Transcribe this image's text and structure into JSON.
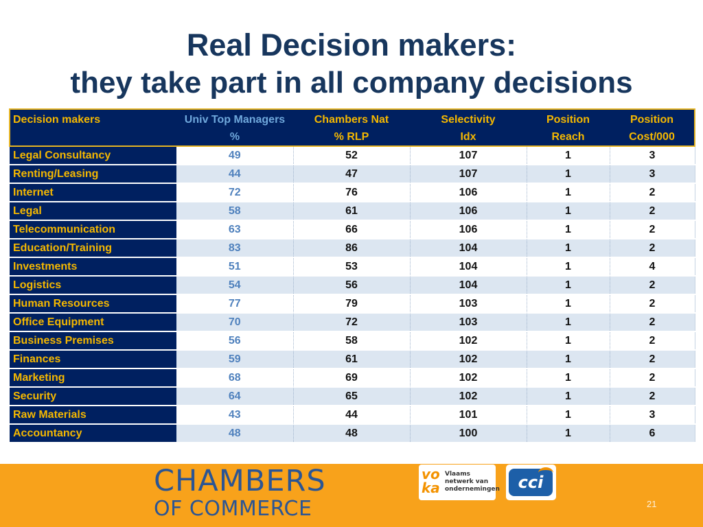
{
  "title": {
    "line1": "Real Decision makers:",
    "line2": "they take part in all company decisions"
  },
  "table": {
    "headers": [
      {
        "line1": "Decision makers",
        "line2": ""
      },
      {
        "line1": "Univ Top Managers",
        "line2": "%"
      },
      {
        "line1": "Chambers Nat",
        "line2": "% RLP"
      },
      {
        "line1": "Selectivity",
        "line2": "Idx"
      },
      {
        "line1": "Position",
        "line2": "Reach"
      },
      {
        "line1": "Position",
        "line2": "Cost/000"
      }
    ],
    "rows": [
      {
        "name": "Legal Consultancy",
        "univ": "49",
        "chambers": "52",
        "selectivity": "107",
        "reach": "1",
        "cost": "3"
      },
      {
        "name": "Renting/Leasing",
        "univ": "44",
        "chambers": "47",
        "selectivity": "107",
        "reach": "1",
        "cost": "3"
      },
      {
        "name": "Internet",
        "univ": "72",
        "chambers": "76",
        "selectivity": "106",
        "reach": "1",
        "cost": "2"
      },
      {
        "name": "Legal",
        "univ": "58",
        "chambers": "61",
        "selectivity": "106",
        "reach": "1",
        "cost": "2"
      },
      {
        "name": "Telecommunication",
        "univ": "63",
        "chambers": "66",
        "selectivity": "106",
        "reach": "1",
        "cost": "2"
      },
      {
        "name": "Education/Training",
        "univ": "83",
        "chambers": "86",
        "selectivity": "104",
        "reach": "1",
        "cost": "2"
      },
      {
        "name": "Investments",
        "univ": "51",
        "chambers": "53",
        "selectivity": "104",
        "reach": "1",
        "cost": "4"
      },
      {
        "name": "Logistics",
        "univ": "54",
        "chambers": "56",
        "selectivity": "104",
        "reach": "1",
        "cost": "2"
      },
      {
        "name": "Human Resources",
        "univ": "77",
        "chambers": "79",
        "selectivity": "103",
        "reach": "1",
        "cost": "2"
      },
      {
        "name": "Office Equipment",
        "univ": "70",
        "chambers": "72",
        "selectivity": "103",
        "reach": "1",
        "cost": "2"
      },
      {
        "name": "Business Premises",
        "univ": "56",
        "chambers": "58",
        "selectivity": "102",
        "reach": "1",
        "cost": "2"
      },
      {
        "name": "Finances",
        "univ": "59",
        "chambers": "61",
        "selectivity": "102",
        "reach": "1",
        "cost": "2"
      },
      {
        "name": "Marketing",
        "univ": "68",
        "chambers": "69",
        "selectivity": "102",
        "reach": "1",
        "cost": "2"
      },
      {
        "name": "Security",
        "univ": "64",
        "chambers": "65",
        "selectivity": "102",
        "reach": "1",
        "cost": "2"
      },
      {
        "name": "Raw Materials",
        "univ": "43",
        "chambers": "44",
        "selectivity": "101",
        "reach": "1",
        "cost": "3"
      },
      {
        "name": "Accountancy",
        "univ": "48",
        "chambers": "48",
        "selectivity": "100",
        "reach": "1",
        "cost": "6"
      }
    ]
  },
  "footer": {
    "chambers_logo": {
      "line1": "CHAMBERS",
      "line2": "OF COMMERCE"
    },
    "voka_logo": {
      "mark_top": "vo",
      "mark_bottom": "ka",
      "line1": "Vlaams",
      "line2": "netwerk van",
      "line3": "ondernemingen"
    },
    "cci_logo": {
      "text": "cci"
    },
    "page_number": "21"
  },
  "colors": {
    "title": "#17365d",
    "navy": "#002060",
    "gold": "#f5b800",
    "univ_blue": "#4f81bd",
    "row_alt": "#dce6f1",
    "footer_orange": "#f8a21b"
  }
}
